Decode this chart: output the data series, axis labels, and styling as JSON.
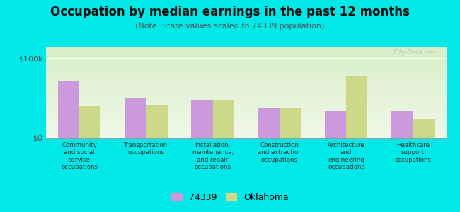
{
  "title": "Occupation by median earnings in the past 12 months",
  "subtitle": "(Note: State values scaled to 74339 population)",
  "categories": [
    "Community\nand social\nservice\noccupations",
    "Transportation\noccupations",
    "Installation,\nmaintenance,\nand repair\noccupations",
    "Construction\nand extraction\noccupations",
    "Architecture\nand\nengineering\noccupations",
    "Healthcare\nsupport\noccupations"
  ],
  "values_74339": [
    72000,
    50000,
    47000,
    37000,
    34000,
    34000
  ],
  "values_oklahoma": [
    40000,
    42000,
    47000,
    37000,
    78000,
    24000
  ],
  "color_74339": "#cc99dd",
  "color_oklahoma": "#ccd988",
  "ylim": [
    0,
    115000
  ],
  "ytick_labels": [
    "$0",
    "$100k"
  ],
  "ytick_vals": [
    0,
    100000
  ],
  "bg_color_top": "#d8eec8",
  "bg_color_bottom": "#f0f8e8",
  "outer_bg": "#00e8e8",
  "watermark": "City-Data.com",
  "legend_74339": "74339",
  "legend_oklahoma": "Oklahoma",
  "bar_width": 0.32,
  "title_fontsize": 12,
  "subtitle_fontsize": 8
}
